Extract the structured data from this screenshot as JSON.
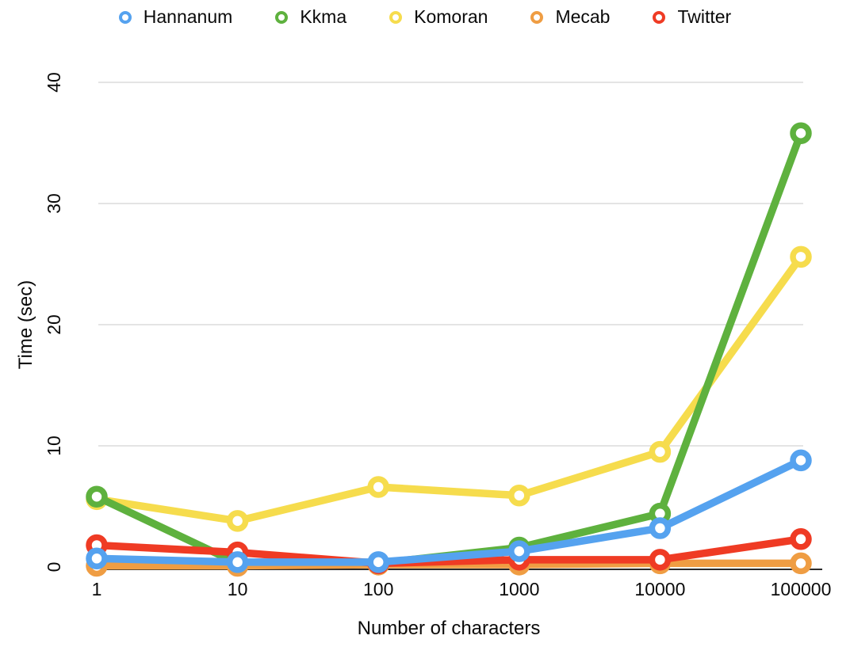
{
  "chart_data": {
    "type": "line",
    "title": "",
    "xlabel": "Number of characters",
    "ylabel": "Time (sec)",
    "categories": [
      "1",
      "10",
      "100",
      "1000",
      "10000",
      "100000"
    ],
    "x_values": [
      1,
      10,
      100,
      1000,
      10000,
      100000
    ],
    "x_scale": "log-categorical",
    "ylim": [
      0,
      40
    ],
    "yticks": [
      0,
      10,
      20,
      30,
      40
    ],
    "grid": true,
    "legend_position": "top",
    "series": [
      {
        "name": "Hannanum",
        "color": "#55A2EF",
        "values": [
          0.7,
          0.4,
          0.4,
          1.3,
          3.2,
          8.8
        ]
      },
      {
        "name": "Kkma",
        "color": "#5EB13E",
        "values": [
          5.8,
          0.3,
          0.3,
          1.6,
          4.4,
          35.8
        ]
      },
      {
        "name": "Komoran",
        "color": "#F6DC4D",
        "values": [
          5.6,
          3.8,
          6.6,
          5.9,
          9.5,
          25.6
        ]
      },
      {
        "name": "Mecab",
        "color": "#EF9D43",
        "values": [
          0.1,
          0.1,
          0.2,
          0.2,
          0.3,
          0.3
        ]
      },
      {
        "name": "Twitter",
        "color": "#EF3B24",
        "values": [
          1.8,
          1.2,
          0.3,
          0.6,
          0.6,
          2.3
        ]
      }
    ],
    "draw_order": [
      "Komoran",
      "Kkma",
      "Mecab",
      "Twitter",
      "Hannanum"
    ],
    "grid_color": "#dcdcdc",
    "axis_line_color": "#2b2b2b"
  }
}
